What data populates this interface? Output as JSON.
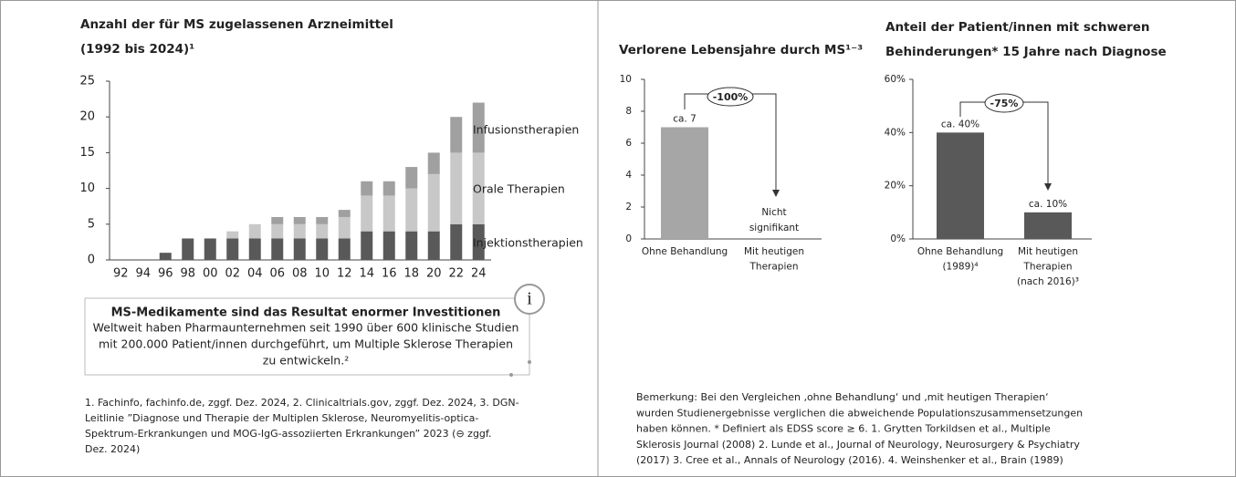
{
  "chart_data": [
    {
      "type": "bar",
      "stacked": true,
      "title": [
        "Anzahl der für MS zugelassenen Arzneimittel",
        "(1992 bis 2024)¹"
      ],
      "categories": [
        "92",
        "94",
        "96",
        "98",
        "00",
        "02",
        "04",
        "06",
        "08",
        "10",
        "12",
        "14",
        "16",
        "18",
        "20",
        "22",
        "24"
      ],
      "series": [
        {
          "name": "Injektionstherapien",
          "color": "#595959",
          "values": [
            0,
            0,
            1,
            3,
            3,
            3,
            3,
            3,
            3,
            3,
            3,
            4,
            4,
            4,
            4,
            5,
            5
          ]
        },
        {
          "name": "Orale Therapien",
          "color": "#c8c8c8",
          "values": [
            0,
            0,
            0,
            0,
            0,
            1,
            2,
            2,
            2,
            2,
            3,
            5,
            5,
            6,
            8,
            10,
            10
          ]
        },
        {
          "name": "Infusionstherapien",
          "color": "#a0a0a0",
          "values": [
            0,
            0,
            0,
            0,
            0,
            0,
            0,
            1,
            1,
            1,
            1,
            2,
            2,
            3,
            3,
            5,
            7
          ]
        }
      ],
      "ylim": [
        0,
        25
      ],
      "yticks": [
        0,
        5,
        10,
        15,
        20,
        25
      ]
    },
    {
      "type": "bar",
      "title": [
        "Verlorene Lebensjahre durch MS¹⁻³"
      ],
      "categories": [
        [
          "Ohne Behandlung"
        ],
        [
          "Mit heutigen",
          "Therapien"
        ]
      ],
      "values": [
        7,
        null
      ],
      "value_labels": [
        "ca. 7",
        "Nicht signifikant"
      ],
      "color": "#a6a6a6",
      "annotation": "-100%",
      "ylim": [
        0,
        10
      ],
      "yticks": [
        0,
        2,
        4,
        6,
        8,
        10
      ]
    },
    {
      "type": "bar",
      "title": [
        "Anteil der Patient/innen mit schweren",
        "Behinderungen* 15 Jahre nach Diagnose"
      ],
      "categories": [
        [
          "Ohne Behandlung",
          "(1989)⁴"
        ],
        [
          "Mit heutigen",
          "Therapien",
          "(nach 2016)³"
        ]
      ],
      "values": [
        40,
        10
      ],
      "value_labels": [
        "ca. 40%",
        "ca. 10%"
      ],
      "color": "#595959",
      "annotation": "-75%",
      "ylim": [
        0,
        60
      ],
      "yticks": [
        {
          "value": 0,
          "label": "0%"
        },
        {
          "value": 20,
          "label": "20%"
        },
        {
          "value": 40,
          "label": "40%"
        },
        {
          "value": 60,
          "label": "60%"
        }
      ]
    }
  ],
  "info_box": {
    "icon": "i",
    "title": "MS-Medikamente sind das Resultat enormer Investitionen",
    "lines": [
      "Weltweit haben Pharmaunternehmen seit 1990 über 600 klinische Studien",
      "mit 200.000 Patient/innen durchgeführt, um Multiple Sklerose Therapien",
      "zu entwickeln.²"
    ]
  },
  "footnotes": [
    "1. Fachinfo, fachinfo.de, zggf. Dez. 2024, 2. Clinicaltrials.gov, zggf. Dez. 2024, 3. DGN-",
    "Leitlinie ”Diagnose und Therapie der Multiplen Sklerose, Neuromyelitis-optica-",
    "Spektrum-Erkrankungen und MOG-IgG-assoziierten Erkrankungen” 2023 (⊖ zggf.",
    "Dez. 2024)"
  ],
  "remark": [
    "Bemerkung: Bei den Vergleichen ‚ohne Behandlung‘ und ‚mit heutigen Therapien‘",
    "wurden Studienergebnisse verglichen die abweichende Populationszusammensetzungen",
    "haben können. * Definiert als EDSS score ≥ 6.  1. Grytten Torkildsen et al., Multiple",
    "Sklerosis Journal (2008) 2. Lunde et al., Journal of Neurology, Neurosurgery & Psychiatry",
    "(2017) 3. Cree et al., Annals of Neurology (2016). 4. Weinshenker et al., Brain (1989)"
  ]
}
